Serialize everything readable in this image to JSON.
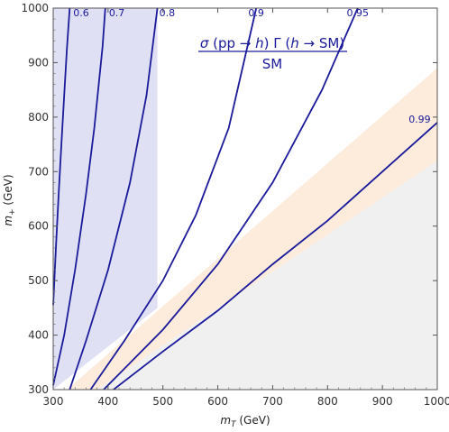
{
  "chart_data": {
    "type": "line",
    "xlabel_main": "m",
    "xlabel_sub": "T",
    "xlabel_unit": " (GeV)",
    "ylabel_main": "m",
    "ylabel_sub": "+",
    "ylabel_unit": " (GeV)",
    "xlim": [
      300,
      1000
    ],
    "ylim": [
      300,
      1000
    ],
    "xticks": [
      "300",
      "400",
      "500",
      "600",
      "700",
      "800",
      "900",
      "1000"
    ],
    "yticks": [
      "300",
      "400",
      "500",
      "600",
      "700",
      "800",
      "900",
      "1000"
    ],
    "formula": {
      "numerator_a": "σ",
      "numerator_b": " (pp → ",
      "numerator_c": "h",
      "numerator_d": ") Γ (",
      "numerator_e": "h",
      "numerator_f": " → SM)",
      "denominator": "SM"
    },
    "series": [
      {
        "label": "0.6",
        "x": [
          300,
          305,
          310,
          315,
          320,
          325,
          330
        ],
        "y": [
          455,
          560,
          660,
          750,
          840,
          925,
          1000
        ]
      },
      {
        "label": "0.7",
        "x": [
          300,
          320,
          340,
          360,
          375,
          390,
          395
        ],
        "y": [
          308,
          400,
          520,
          660,
          780,
          930,
          1000
        ]
      },
      {
        "label": "0.8",
        "x": [
          330,
          360,
          400,
          440,
          470,
          490
        ],
        "y": [
          300,
          390,
          520,
          680,
          840,
          1000
        ]
      },
      {
        "label": "0.9",
        "x": [
          368,
          430,
          500,
          560,
          620,
          670
        ],
        "y": [
          300,
          390,
          500,
          620,
          780,
          1000
        ]
      },
      {
        "label": "0.95",
        "x": [
          392,
          500,
          600,
          700,
          790,
          855
        ],
        "y": [
          300,
          410,
          530,
          680,
          850,
          1000
        ]
      },
      {
        "label": "0.99",
        "x": [
          410,
          500,
          600,
          700,
          800,
          900,
          1000
        ],
        "y": [
          300,
          370,
          445,
          530,
          610,
          700,
          790
        ]
      }
    ],
    "regions": [
      {
        "name": "excluded-blue",
        "color": "#d8d8f2"
      },
      {
        "name": "orange-band",
        "color": "#fde8d6"
      },
      {
        "name": "gray-region",
        "color": "#f0f0f0"
      }
    ],
    "colors": {
      "contour": "#1a1a9a"
    }
  }
}
